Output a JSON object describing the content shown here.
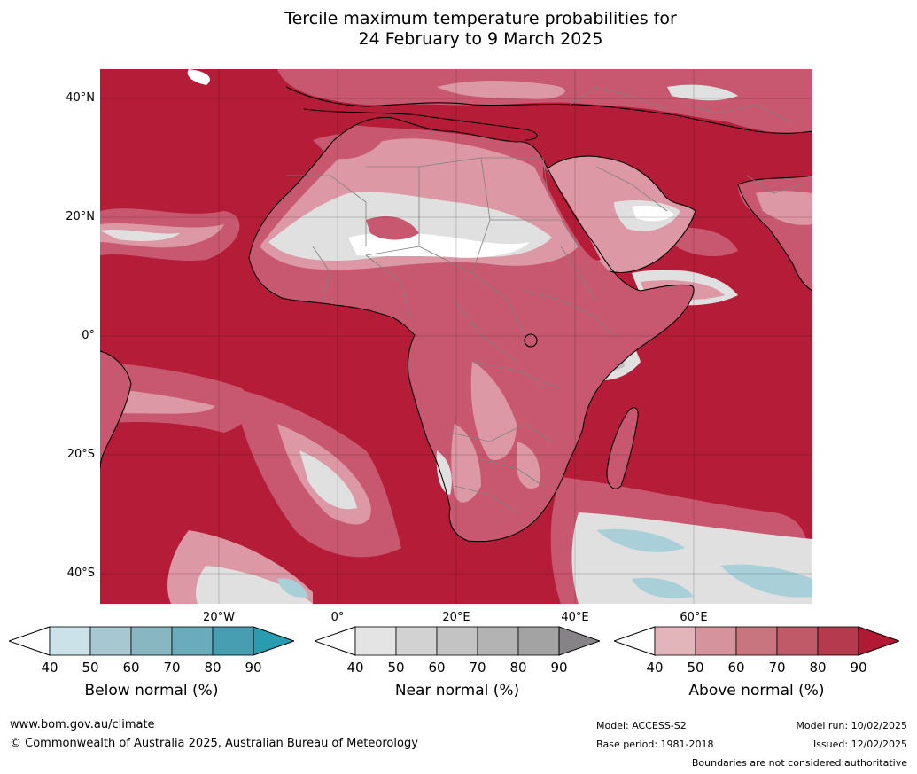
{
  "title": {
    "line1": "Tercile maximum temperature probabilities for",
    "line2": "24 February to 9 March 2025"
  },
  "map": {
    "lat_labels": [
      "40°N",
      "20°N",
      "0°",
      "20°S",
      "40°S"
    ],
    "lon_labels": [
      "20°W",
      "0°",
      "20°E",
      "40°E",
      "60°E"
    ],
    "colors": {
      "ocean_above": "#b51c38",
      "above_mid": "#c85870",
      "above_light": "#dc98a4",
      "near_light": "#e0e0e0",
      "near_mid": "#bdbdbd",
      "below_light": "#a9d0d9",
      "coastline": "#000000",
      "borders": "#808080"
    }
  },
  "colorbars": [
    {
      "name": "Below normal (%)",
      "ticks": [
        "40",
        "50",
        "60",
        "70",
        "80",
        "90"
      ],
      "colors": [
        "#ffffff",
        "#cbe2e8",
        "#a7c8d0",
        "#88b6c1",
        "#6aacbb",
        "#469eb0",
        "#2a9cb0"
      ]
    },
    {
      "name": "Near normal (%)",
      "ticks": [
        "40",
        "50",
        "60",
        "70",
        "80",
        "90"
      ],
      "colors": [
        "#ffffff",
        "#e4e4e4",
        "#d2d2d2",
        "#c3c3c3",
        "#b3b3b3",
        "#a3a3a3",
        "#858385"
      ]
    },
    {
      "name": "Above normal (%)",
      "ticks": [
        "40",
        "50",
        "60",
        "70",
        "80",
        "90"
      ],
      "colors": [
        "#ffffff",
        "#e2b5bb",
        "#d5939d",
        "#c97580",
        "#c05a69",
        "#b63a4e",
        "#b11935"
      ]
    }
  ],
  "footer": {
    "website": "www.bom.gov.au/climate",
    "copyright": "© Commonwealth of Australia 2025, Australian Bureau of Meteorology",
    "model": "Model: ACCESS-S2",
    "base_period": "Base period: 1981-2018",
    "model_run": "Model run: 10/02/2025",
    "issued": "Issued: 12/02/2025",
    "disclaimer": "Boundaries are not considered authoritative"
  }
}
